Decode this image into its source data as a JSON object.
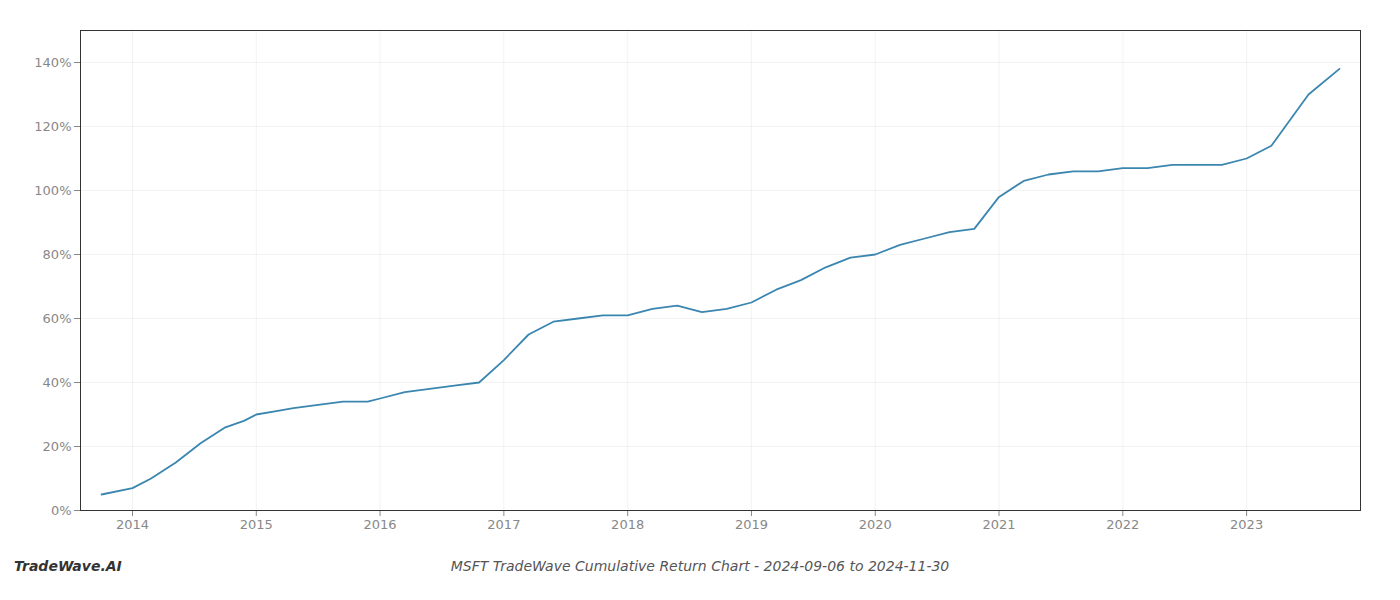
{
  "chart_data": {
    "type": "line",
    "title": "MSFT TradeWave Cumulative Return Chart - 2024-09-06 to 2024-11-30",
    "annotations": [
      "TradeWave.AI"
    ],
    "color": "#3a86b0",
    "x": [
      2013.75,
      2014.0,
      2014.15,
      2014.35,
      2014.55,
      2014.75,
      2014.9,
      2015.0,
      2015.15,
      2015.3,
      2015.5,
      2015.7,
      2015.9,
      2016.0,
      2016.2,
      2016.4,
      2016.6,
      2016.8,
      2017.0,
      2017.2,
      2017.4,
      2017.6,
      2017.8,
      2018.0,
      2018.2,
      2018.4,
      2018.6,
      2018.8,
      2019.0,
      2019.2,
      2019.4,
      2019.6,
      2019.8,
      2020.0,
      2020.2,
      2020.4,
      2020.6,
      2020.8,
      2021.0,
      2021.2,
      2021.4,
      2021.6,
      2021.8,
      2022.0,
      2022.2,
      2022.4,
      2022.6,
      2022.8,
      2023.0,
      2023.2,
      2023.5,
      2023.75
    ],
    "values": [
      5,
      7,
      10,
      15,
      21,
      26,
      28,
      30,
      31,
      32,
      33,
      34,
      34,
      35,
      37,
      38,
      39,
      40,
      47,
      55,
      59,
      60,
      61,
      61,
      63,
      64,
      62,
      63,
      65,
      69,
      72,
      76,
      79,
      80,
      83,
      85,
      87,
      88,
      98,
      103,
      105,
      106,
      106,
      107,
      107,
      108,
      108,
      108,
      110,
      114,
      130,
      138
    ],
    "xlim": [
      2013.58,
      2023.92
    ],
    "xticks": [
      2014,
      2015,
      2016,
      2017,
      2018,
      2019,
      2020,
      2021,
      2022,
      2023
    ],
    "ylim": [
      0,
      150
    ],
    "yticks": [
      {
        "value": 0,
        "label": "0%"
      },
      {
        "value": 20,
        "label": "20%"
      },
      {
        "value": 40,
        "label": "40%"
      },
      {
        "value": 60,
        "label": "60%"
      },
      {
        "value": 80,
        "label": "80%"
      },
      {
        "value": 100,
        "label": "100%"
      },
      {
        "value": 120,
        "label": "120%"
      },
      {
        "value": 140,
        "label": "140%"
      }
    ],
    "grid": true
  }
}
